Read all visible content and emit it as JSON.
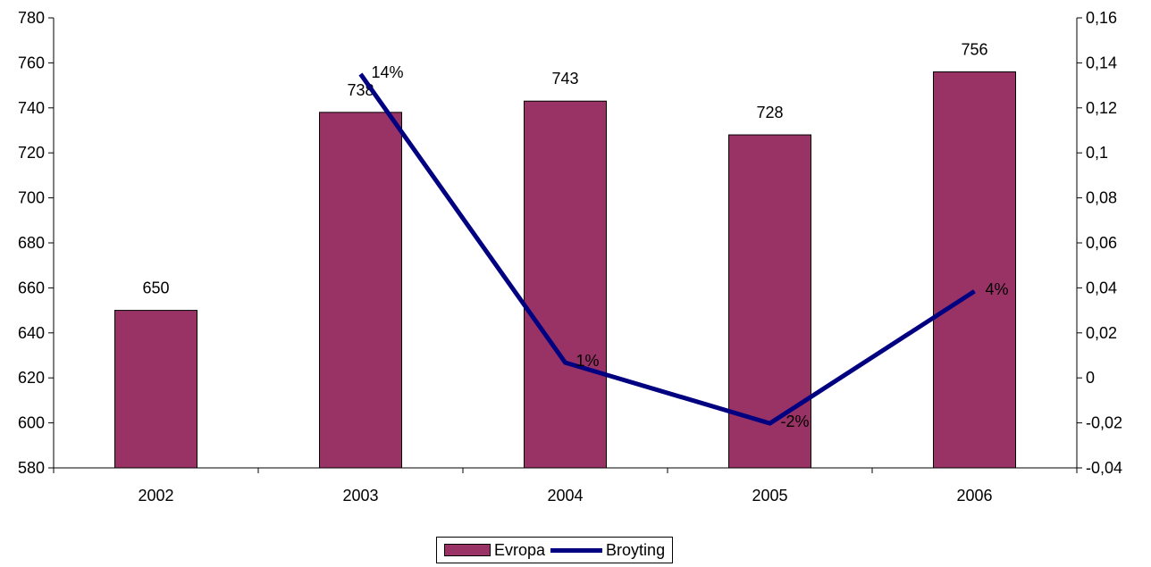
{
  "colors": {
    "bar": "#993366",
    "line": "#000080",
    "axis": "#000000"
  },
  "chart_data": {
    "type": "bar",
    "categories": [
      "2002",
      "2003",
      "2004",
      "2005",
      "2006"
    ],
    "series": [
      {
        "name": "Evropa",
        "type": "bar",
        "axis": "left",
        "values": [
          650,
          738,
          743,
          728,
          756
        ],
        "labels": [
          "650",
          "738",
          "743",
          "728",
          "756"
        ]
      },
      {
        "name": "Broyting",
        "type": "line",
        "axis": "right",
        "values": [
          null,
          0.135,
          0.0068,
          -0.0202,
          0.0385
        ],
        "labels": [
          "",
          "14%",
          "1%",
          "-2%",
          "4%"
        ]
      }
    ],
    "y_left": {
      "ylim": [
        580,
        780
      ],
      "ticks": [
        "580",
        "600",
        "620",
        "640",
        "660",
        "680",
        "700",
        "720",
        "740",
        "760",
        "780"
      ]
    },
    "y_right": {
      "ylim": [
        -0.04,
        0.16
      ],
      "ticks": [
        "-0,04",
        "-0,02",
        "0",
        "0,02",
        "0,04",
        "0,06",
        "0,08",
        "0,1",
        "0,12",
        "0,14",
        "0,16"
      ]
    },
    "legend": {
      "position": "bottom",
      "entries": [
        "Evropa",
        "Broyting"
      ]
    },
    "grid": false
  }
}
